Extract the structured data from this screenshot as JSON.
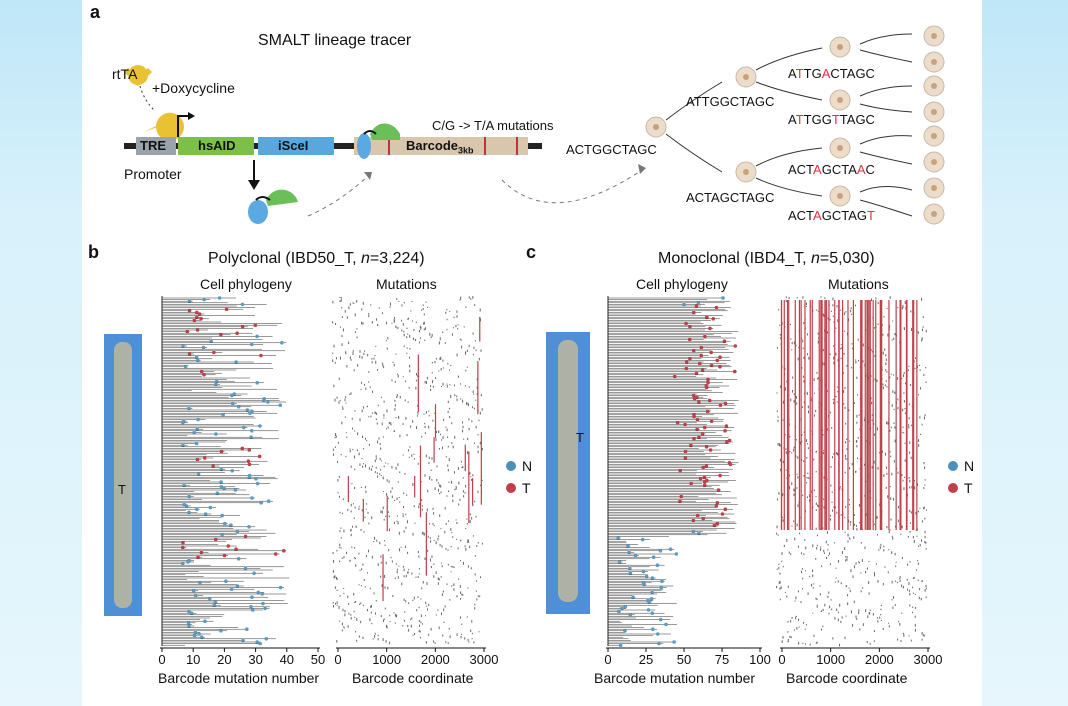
{
  "panel_a": {
    "label": "a",
    "title": "SMALT lineage tracer",
    "rtta": "rtTA",
    "doxy": "+Doxycycline",
    "promoter": "Promoter",
    "tre": "TRE",
    "hsaid": "hsAID",
    "iscei": "iSceI",
    "barcode_main": "Barcode",
    "barcode_sub": "3kb",
    "mutations_note": "C/G -> T/A mutations",
    "colors": {
      "tre": "#9aa3aa",
      "hsaid": "#7cc04a",
      "iscei": "#58a8de",
      "barcode": "#d9c7ad",
      "protein_blue": "#5aa9e0",
      "protein_green": "#6bbf59",
      "rtta": "#e8c233",
      "cell": "#ecdcca",
      "mut": "#e0323a"
    },
    "root_seq": "ACTGGCTAGC",
    "seq_upper": "ATTGGCTAGC",
    "seq_lower": "ACTAGCTAGC",
    "leaves": [
      [
        {
          "t": "A",
          "m": false
        },
        {
          "t": "T",
          "m": true
        },
        {
          "t": "TG",
          "m": false
        },
        {
          "t": "A",
          "m": true
        },
        {
          "t": "CTAGC",
          "m": false
        }
      ],
      [
        {
          "t": "A",
          "m": false
        },
        {
          "t": "T",
          "m": true
        },
        {
          "t": "TGG",
          "m": false
        },
        {
          "t": "T",
          "m": true
        },
        {
          "t": "TAGC",
          "m": false
        }
      ],
      [
        {
          "t": "ACT",
          "m": false
        },
        {
          "t": "A",
          "m": true
        },
        {
          "t": "GCTA",
          "m": false
        },
        {
          "t": "A",
          "m": true
        },
        {
          "t": "C",
          "m": false
        }
      ],
      [
        {
          "t": "ACT",
          "m": false
        },
        {
          "t": "A",
          "m": true
        },
        {
          "t": "GCTAG",
          "m": false
        },
        {
          "t": "T",
          "m": true
        }
      ]
    ]
  },
  "panel_b": {
    "label": "b",
    "title_pre": "Polyclonal (IBD50_T, ",
    "title_n": "n",
    "title_post": "=3,224)",
    "phylogeny_label": "Cell phylogeny",
    "mutations_label": "Mutations",
    "tissue_tag": "T",
    "x1_ticks": [
      "0",
      "10",
      "20",
      "30",
      "40",
      "50"
    ],
    "x1_label": "Barcode mutation number",
    "x2_ticks": [
      "0",
      "1000",
      "2000",
      "3000"
    ],
    "x2_label": "Barcode coordinate",
    "legend": [
      {
        "label": "N",
        "color": "#4a90b8"
      },
      {
        "label": "T",
        "color": "#c0404a"
      }
    ]
  },
  "panel_c": {
    "label": "c",
    "title_pre": "Monoclonal (IBD4_T, ",
    "title_n": "n",
    "title_post": "=5,030)",
    "phylogeny_label": "Cell phylogeny",
    "mutations_label": "Mutations",
    "tissue_tag": "T",
    "x1_ticks": [
      "0",
      "25",
      "50",
      "75",
      "100"
    ],
    "x1_label": "Barcode mutation number",
    "x2_ticks": [
      "0",
      "1000",
      "2000",
      "3000"
    ],
    "x2_label": "Barcode coordinate",
    "legend": [
      {
        "label": "N",
        "color": "#4a90b8"
      },
      {
        "label": "T",
        "color": "#c0404a"
      }
    ]
  }
}
